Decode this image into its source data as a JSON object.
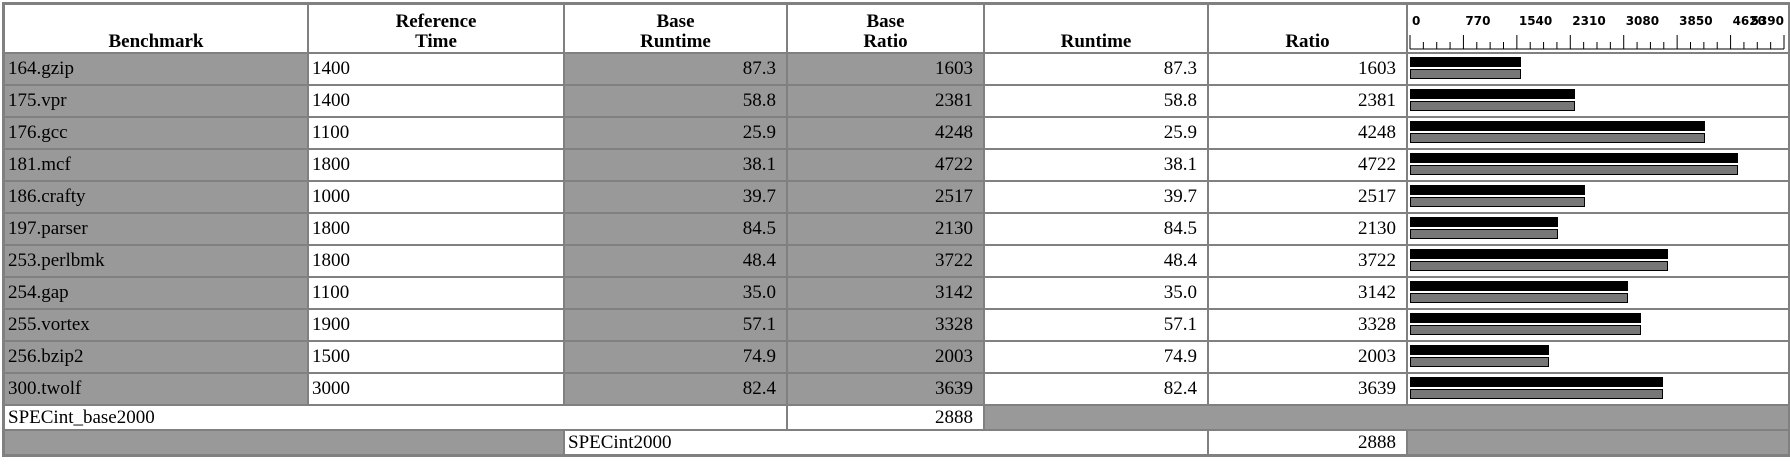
{
  "headers": {
    "benchmark": "Benchmark",
    "ref_time": [
      "Reference",
      "Time"
    ],
    "base_runtime": [
      "Base",
      "Runtime"
    ],
    "base_ratio": [
      "Base",
      "Ratio"
    ],
    "runtime": "Runtime",
    "ratio": "Ratio"
  },
  "scale": {
    "ticks": [
      "0",
      "770",
      "1540",
      "2310",
      "3080",
      "3850",
      "4620",
      "5390"
    ],
    "max": 5390
  },
  "rows": [
    {
      "name": "164.gzip",
      "ref": "1400",
      "base_runtime": "87.3",
      "base_ratio": "1603",
      "runtime": "87.3",
      "ratio": "1603",
      "base_value": 1603,
      "peak_value": 1603
    },
    {
      "name": "175.vpr",
      "ref": "1400",
      "base_runtime": "58.8",
      "base_ratio": "2381",
      "runtime": "58.8",
      "ratio": "2381",
      "base_value": 2381,
      "peak_value": 2381
    },
    {
      "name": "176.gcc",
      "ref": "1100",
      "base_runtime": "25.9",
      "base_ratio": "4248",
      "runtime": "25.9",
      "ratio": "4248",
      "base_value": 4248,
      "peak_value": 4248
    },
    {
      "name": "181.mcf",
      "ref": "1800",
      "base_runtime": "38.1",
      "base_ratio": "4722",
      "runtime": "38.1",
      "ratio": "4722",
      "base_value": 4722,
      "peak_value": 4722
    },
    {
      "name": "186.crafty",
      "ref": "1000",
      "base_runtime": "39.7",
      "base_ratio": "2517",
      "runtime": "39.7",
      "ratio": "2517",
      "base_value": 2517,
      "peak_value": 2517
    },
    {
      "name": "197.parser",
      "ref": "1800",
      "base_runtime": "84.5",
      "base_ratio": "2130",
      "runtime": "84.5",
      "ratio": "2130",
      "base_value": 2130,
      "peak_value": 2130
    },
    {
      "name": "253.perlbmk",
      "ref": "1800",
      "base_runtime": "48.4",
      "base_ratio": "3722",
      "runtime": "48.4",
      "ratio": "3722",
      "base_value": 3722,
      "peak_value": 3722
    },
    {
      "name": "254.gap",
      "ref": "1100",
      "base_runtime": "35.0",
      "base_ratio": "3142",
      "runtime": "35.0",
      "ratio": "3142",
      "base_value": 3142,
      "peak_value": 3142
    },
    {
      "name": "255.vortex",
      "ref": "1900",
      "base_runtime": "57.1",
      "base_ratio": "3328",
      "runtime": "57.1",
      "ratio": "3328",
      "base_value": 3328,
      "peak_value": 3328
    },
    {
      "name": "256.bzip2",
      "ref": "1500",
      "base_runtime": "74.9",
      "base_ratio": "2003",
      "runtime": "74.9",
      "ratio": "2003",
      "base_value": 2003,
      "peak_value": 2003
    },
    {
      "name": "300.twolf",
      "ref": "3000",
      "base_runtime": "82.4",
      "base_ratio": "3639",
      "runtime": "82.4",
      "ratio": "3639",
      "base_value": 3639,
      "peak_value": 3639
    }
  ],
  "summary": {
    "base_label": "SPECint_base2000",
    "base_value": "2888",
    "peak_label": "SPECint2000",
    "peak_value": "2888"
  },
  "colors": {
    "cell_gray": "#999999",
    "peak_bar": "#000000",
    "base_bar": "#777777"
  }
}
